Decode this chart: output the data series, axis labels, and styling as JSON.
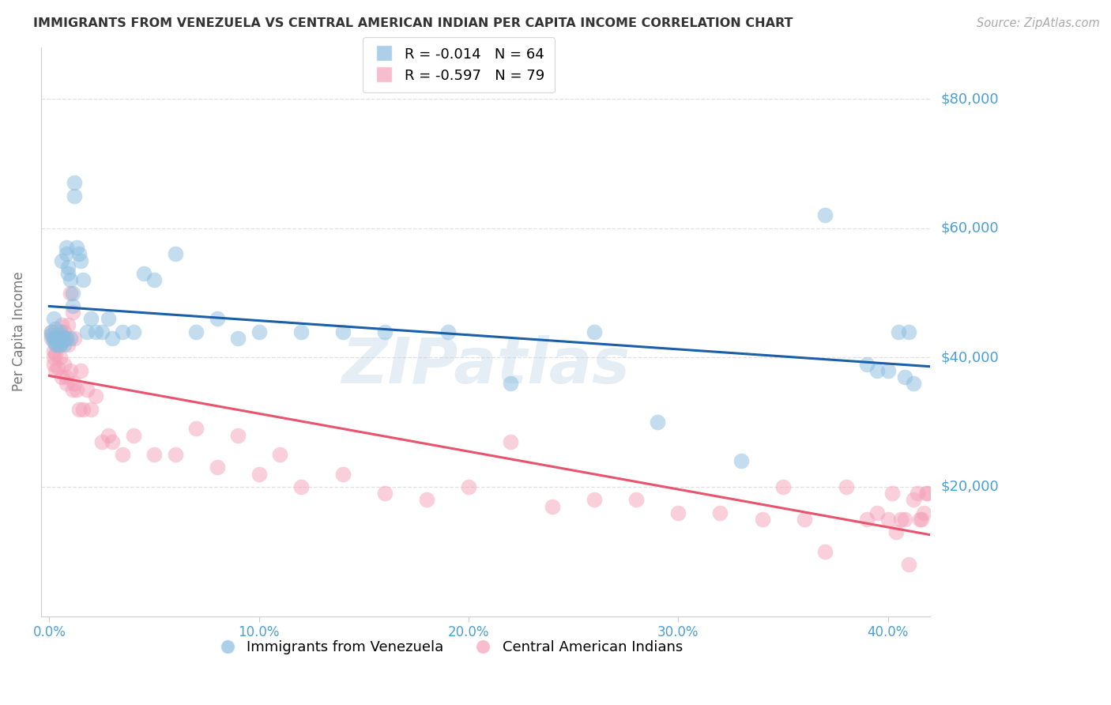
{
  "title": "IMMIGRANTS FROM VENEZUELA VS CENTRAL AMERICAN INDIAN PER CAPITA INCOME CORRELATION CHART",
  "source": "Source: ZipAtlas.com",
  "ylabel": "Per Capita Income",
  "xlabel_ticks": [
    "0.0%",
    "10.0%",
    "20.0%",
    "30.0%",
    "40.0%"
  ],
  "xlabel_vals": [
    0.0,
    0.1,
    0.2,
    0.3,
    0.4
  ],
  "ytick_labels": [
    "$20,000",
    "$40,000",
    "$60,000",
    "$80,000"
  ],
  "ytick_vals": [
    20000,
    40000,
    60000,
    80000
  ],
  "ylim": [
    0,
    88000
  ],
  "xlim": [
    -0.004,
    0.42
  ],
  "legend_label1": "Immigrants from Venezuela",
  "legend_label2": "Central American Indians",
  "blue_color": "#89bde0",
  "pink_color": "#f4a0b8",
  "blue_line_color": "#1a5fa8",
  "pink_line_color": "#e8536e",
  "title_color": "#333333",
  "axis_label_color": "#777777",
  "tick_label_color": "#4a9fd4",
  "grid_color": "#e0e0e0",
  "watermark": "ZIPatlas",
  "blue_R": "-0.014",
  "blue_N": "64",
  "pink_R": "-0.597",
  "pink_N": "79",
  "blue_scatter_x": [
    0.001,
    0.001,
    0.002,
    0.002,
    0.002,
    0.003,
    0.003,
    0.003,
    0.004,
    0.004,
    0.005,
    0.005,
    0.005,
    0.006,
    0.006,
    0.006,
    0.007,
    0.007,
    0.008,
    0.008,
    0.008,
    0.009,
    0.009,
    0.01,
    0.01,
    0.011,
    0.011,
    0.012,
    0.012,
    0.013,
    0.014,
    0.015,
    0.016,
    0.018,
    0.02,
    0.022,
    0.025,
    0.028,
    0.03,
    0.035,
    0.04,
    0.045,
    0.05,
    0.06,
    0.07,
    0.08,
    0.09,
    0.1,
    0.12,
    0.14,
    0.16,
    0.19,
    0.22,
    0.26,
    0.29,
    0.33,
    0.37,
    0.39,
    0.395,
    0.4,
    0.405,
    0.408,
    0.41,
    0.412
  ],
  "blue_scatter_y": [
    44000,
    43500,
    46000,
    43000,
    42500,
    44500,
    43000,
    42000,
    43000,
    42000,
    43500,
    42000,
    44000,
    55000,
    43000,
    42500,
    43000,
    42000,
    57000,
    56000,
    43000,
    54000,
    53000,
    52000,
    43000,
    50000,
    48000,
    67000,
    65000,
    57000,
    56000,
    55000,
    52000,
    44000,
    46000,
    44000,
    44000,
    46000,
    43000,
    44000,
    44000,
    53000,
    52000,
    56000,
    44000,
    46000,
    43000,
    44000,
    44000,
    44000,
    44000,
    44000,
    36000,
    44000,
    30000,
    24000,
    62000,
    39000,
    38000,
    38000,
    44000,
    37000,
    44000,
    36000
  ],
  "pink_scatter_x": [
    0.001,
    0.001,
    0.002,
    0.002,
    0.002,
    0.003,
    0.003,
    0.003,
    0.004,
    0.004,
    0.005,
    0.005,
    0.005,
    0.006,
    0.006,
    0.006,
    0.007,
    0.007,
    0.008,
    0.008,
    0.008,
    0.009,
    0.009,
    0.01,
    0.01,
    0.011,
    0.011,
    0.012,
    0.012,
    0.013,
    0.014,
    0.015,
    0.016,
    0.018,
    0.02,
    0.022,
    0.025,
    0.028,
    0.03,
    0.035,
    0.04,
    0.05,
    0.06,
    0.07,
    0.08,
    0.09,
    0.1,
    0.11,
    0.12,
    0.14,
    0.16,
    0.18,
    0.2,
    0.22,
    0.24,
    0.26,
    0.28,
    0.3,
    0.32,
    0.34,
    0.35,
    0.36,
    0.37,
    0.38,
    0.39,
    0.395,
    0.4,
    0.402,
    0.404,
    0.406,
    0.408,
    0.41,
    0.412,
    0.414,
    0.415,
    0.416,
    0.417,
    0.418,
    0.419
  ],
  "pink_scatter_y": [
    44000,
    43000,
    41000,
    40000,
    39000,
    43000,
    40500,
    38000,
    42000,
    38500,
    43000,
    42000,
    40000,
    43000,
    37000,
    45000,
    39000,
    44000,
    37000,
    43000,
    36000,
    45000,
    42000,
    38000,
    50000,
    47000,
    35000,
    43000,
    36000,
    35000,
    32000,
    38000,
    32000,
    35000,
    32000,
    34000,
    27000,
    28000,
    27000,
    25000,
    28000,
    25000,
    25000,
    29000,
    23000,
    28000,
    22000,
    25000,
    20000,
    22000,
    19000,
    18000,
    20000,
    27000,
    17000,
    18000,
    18000,
    16000,
    16000,
    15000,
    20000,
    15000,
    10000,
    20000,
    15000,
    16000,
    15000,
    19000,
    13000,
    15000,
    15000,
    8000,
    18000,
    19000,
    15000,
    15000,
    16000,
    19000,
    19000
  ]
}
